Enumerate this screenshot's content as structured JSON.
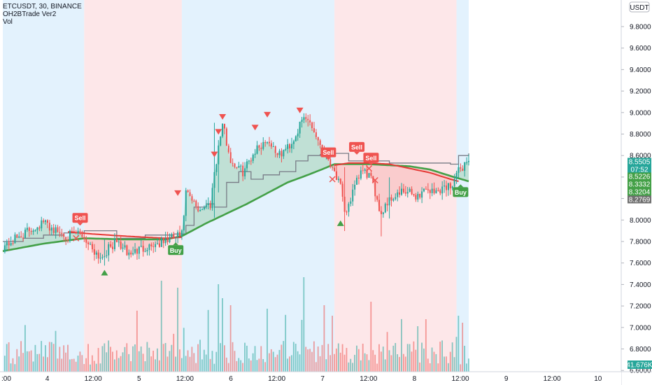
{
  "header": {
    "symbol_line": "ETCUSDT, 30, BINANCE",
    "indicator_1": "OH2BTrade Ver2",
    "indicator_2": "Vol"
  },
  "currency_badge": "USDT",
  "colors": {
    "up": "#26a69a",
    "down": "#ef5350",
    "buy": "#43a047",
    "sell": "#ef5350",
    "bg_buy": "#e3f2fd",
    "bg_sell": "#fde7e9",
    "sma_green": "#43a047",
    "sma_red": "#e53935",
    "trail_gray": "#787b86",
    "price_tag": "#26a69a",
    "last_tag": "#707070",
    "axis_text": "#131722"
  },
  "time_labels": [
    ":00",
    "4",
    "12:00",
    "5",
    "12:00",
    "6",
    "12:00",
    "7",
    "12:00",
    "8",
    "12:00",
    "9",
    "12:00",
    "10"
  ],
  "price_tags": [
    "8.5505",
    "07:52",
    "8.5226",
    "8.3332",
    "8.3204",
    "8.2769"
  ],
  "volume_tag": "41.676K",
  "chart_data": {
    "type": "candlestick",
    "title": "ETCUSDT, 30, BINANCE",
    "ylabel": "USDT",
    "y_ticks": [
      "6.6000",
      "6.8000",
      "7.0000",
      "7.2000",
      "7.4000",
      "7.6000",
      "7.8000",
      "8.0000",
      "8.2000",
      "8.4000",
      "8.6000",
      "8.8000",
      "9.0000",
      "9.2000",
      "9.4000",
      "9.6000",
      "9.8000"
    ],
    "x_ticks": [
      ":00",
      "4",
      "12:00",
      "5",
      "12:00",
      "6",
      "12:00",
      "7",
      "12:00",
      "8",
      "12:00",
      "9",
      "12:00",
      "10"
    ],
    "ylim": [
      6.55,
      10.05
    ],
    "regions": [
      {
        "type": "buy",
        "x_from": 0,
        "x_to": 40
      },
      {
        "type": "sell",
        "x_from": 40,
        "x_to": 88
      },
      {
        "type": "buy",
        "x_from": 88,
        "x_to": 163
      },
      {
        "type": "sell",
        "x_from": 163,
        "x_to": 223
      },
      {
        "type": "buy",
        "x_from": 223,
        "x_to": 229
      }
    ],
    "price_anchors": [
      [
        0,
        7.75
      ],
      [
        10,
        7.87
      ],
      [
        20,
        7.98
      ],
      [
        26,
        7.9
      ],
      [
        32,
        7.85
      ],
      [
        38,
        7.88
      ],
      [
        44,
        7.74
      ],
      [
        48,
        7.65
      ],
      [
        52,
        7.73
      ],
      [
        56,
        7.8
      ],
      [
        62,
        7.68
      ],
      [
        70,
        7.75
      ],
      [
        78,
        7.79
      ],
      [
        84,
        7.84
      ],
      [
        88,
        7.86
      ],
      [
        90,
        8.25
      ],
      [
        96,
        8.1
      ],
      [
        102,
        8.15
      ],
      [
        104,
        8.45
      ],
      [
        108,
        8.9
      ],
      [
        112,
        8.55
      ],
      [
        118,
        8.45
      ],
      [
        124,
        8.65
      ],
      [
        130,
        8.75
      ],
      [
        136,
        8.6
      ],
      [
        142,
        8.72
      ],
      [
        148,
        8.95
      ],
      [
        151,
        8.92
      ],
      [
        154,
        8.78
      ],
      [
        158,
        8.65
      ],
      [
        162,
        8.5
      ],
      [
        166,
        8.3
      ],
      [
        168,
        8.05
      ],
      [
        172,
        8.25
      ],
      [
        176,
        8.45
      ],
      [
        180,
        8.42
      ],
      [
        184,
        8.2
      ],
      [
        186,
        8.05
      ],
      [
        188,
        8.15
      ],
      [
        192,
        8.22
      ],
      [
        196,
        8.25
      ],
      [
        200,
        8.25
      ],
      [
        204,
        8.22
      ],
      [
        208,
        8.3
      ],
      [
        212,
        8.25
      ],
      [
        216,
        8.3
      ],
      [
        220,
        8.32
      ],
      [
        224,
        8.45
      ],
      [
        228,
        8.55
      ]
    ],
    "sma_green_anchors": [
      [
        0,
        7.71
      ],
      [
        20,
        7.78
      ],
      [
        40,
        7.83
      ],
      [
        60,
        7.82
      ],
      [
        80,
        7.82
      ],
      [
        88,
        7.85
      ],
      [
        100,
        7.97
      ],
      [
        110,
        8.06
      ],
      [
        120,
        8.15
      ],
      [
        130,
        8.25
      ],
      [
        140,
        8.35
      ],
      [
        150,
        8.42
      ],
      [
        158,
        8.48
      ],
      [
        163,
        8.52
      ],
      [
        180,
        8.52
      ],
      [
        200,
        8.5
      ],
      [
        210,
        8.47
      ],
      [
        220,
        8.41
      ],
      [
        229,
        8.36
      ]
    ],
    "sma_red_anchors": [
      [
        32,
        7.89
      ],
      [
        44,
        7.87
      ],
      [
        60,
        7.85
      ],
      [
        80,
        7.83
      ],
      [
        88,
        7.84
      ],
      [
        163,
        8.51
      ],
      [
        170,
        8.53
      ],
      [
        180,
        8.53
      ],
      [
        190,
        8.52
      ],
      [
        200,
        8.48
      ],
      [
        210,
        8.44
      ],
      [
        220,
        8.38
      ],
      [
        224,
        8.36
      ]
    ],
    "trail_anchors": [
      [
        0,
        7.8
      ],
      [
        10,
        7.83
      ],
      [
        20,
        7.86
      ],
      [
        30,
        7.88
      ],
      [
        40,
        7.9
      ],
      [
        56,
        7.83
      ],
      [
        70,
        7.86
      ],
      [
        84,
        7.87
      ],
      [
        88,
        7.87
      ],
      [
        90,
        7.95
      ],
      [
        94,
        8.12
      ],
      [
        100,
        8.15
      ],
      [
        104,
        8.12
      ],
      [
        110,
        8.35
      ],
      [
        116,
        8.45
      ],
      [
        122,
        8.38
      ],
      [
        128,
        8.42
      ],
      [
        136,
        8.45
      ],
      [
        144,
        8.55
      ],
      [
        150,
        8.6
      ],
      [
        156,
        8.61
      ],
      [
        160,
        8.62
      ],
      [
        163,
        8.62
      ],
      [
        167,
        8.62
      ],
      [
        170,
        8.55
      ],
      [
        180,
        8.55
      ],
      [
        190,
        8.53
      ],
      [
        200,
        8.53
      ],
      [
        210,
        8.53
      ],
      [
        220,
        8.52
      ],
      [
        224,
        8.6
      ],
      [
        229,
        8.62
      ]
    ],
    "signals": [
      {
        "type": "sell",
        "label": "Sell",
        "x": 38,
        "y": 8.02
      },
      {
        "type": "buy",
        "label": "Buy",
        "x": 85,
        "y": 7.72
      },
      {
        "type": "sell",
        "label": "Sell",
        "x": 160,
        "y": 8.63
      },
      {
        "type": "sell",
        "label": "Sell",
        "x": 174,
        "y": 8.68
      },
      {
        "type": "sell",
        "label": "Sell",
        "x": 181,
        "y": 8.58
      },
      {
        "type": "buy",
        "label": "Buy",
        "x": 225,
        "y": 8.26
      }
    ],
    "sell_arrows": [
      [
        86,
        8.25
      ],
      [
        106,
        8.82
      ],
      [
        108,
        8.96
      ],
      [
        104,
        8.61
      ],
      [
        124,
        8.86
      ],
      [
        130,
        8.98
      ],
      [
        146,
        9.02
      ]
    ],
    "buy_arrows": [
      [
        50,
        7.51
      ],
      [
        166,
        7.97
      ]
    ],
    "cross_marks": [
      [
        36,
        7.83
      ],
      [
        162,
        8.38
      ],
      [
        180,
        8.48
      ],
      [
        183,
        8.37
      ]
    ],
    "latest_values": {
      "last": 8.5505,
      "sma_fast": 8.5226,
      "sma_mid": 8.3332,
      "sma_slow": 8.3204,
      "lower": 8.2769
    },
    "volume": {
      "last": "41.676K"
    }
  }
}
